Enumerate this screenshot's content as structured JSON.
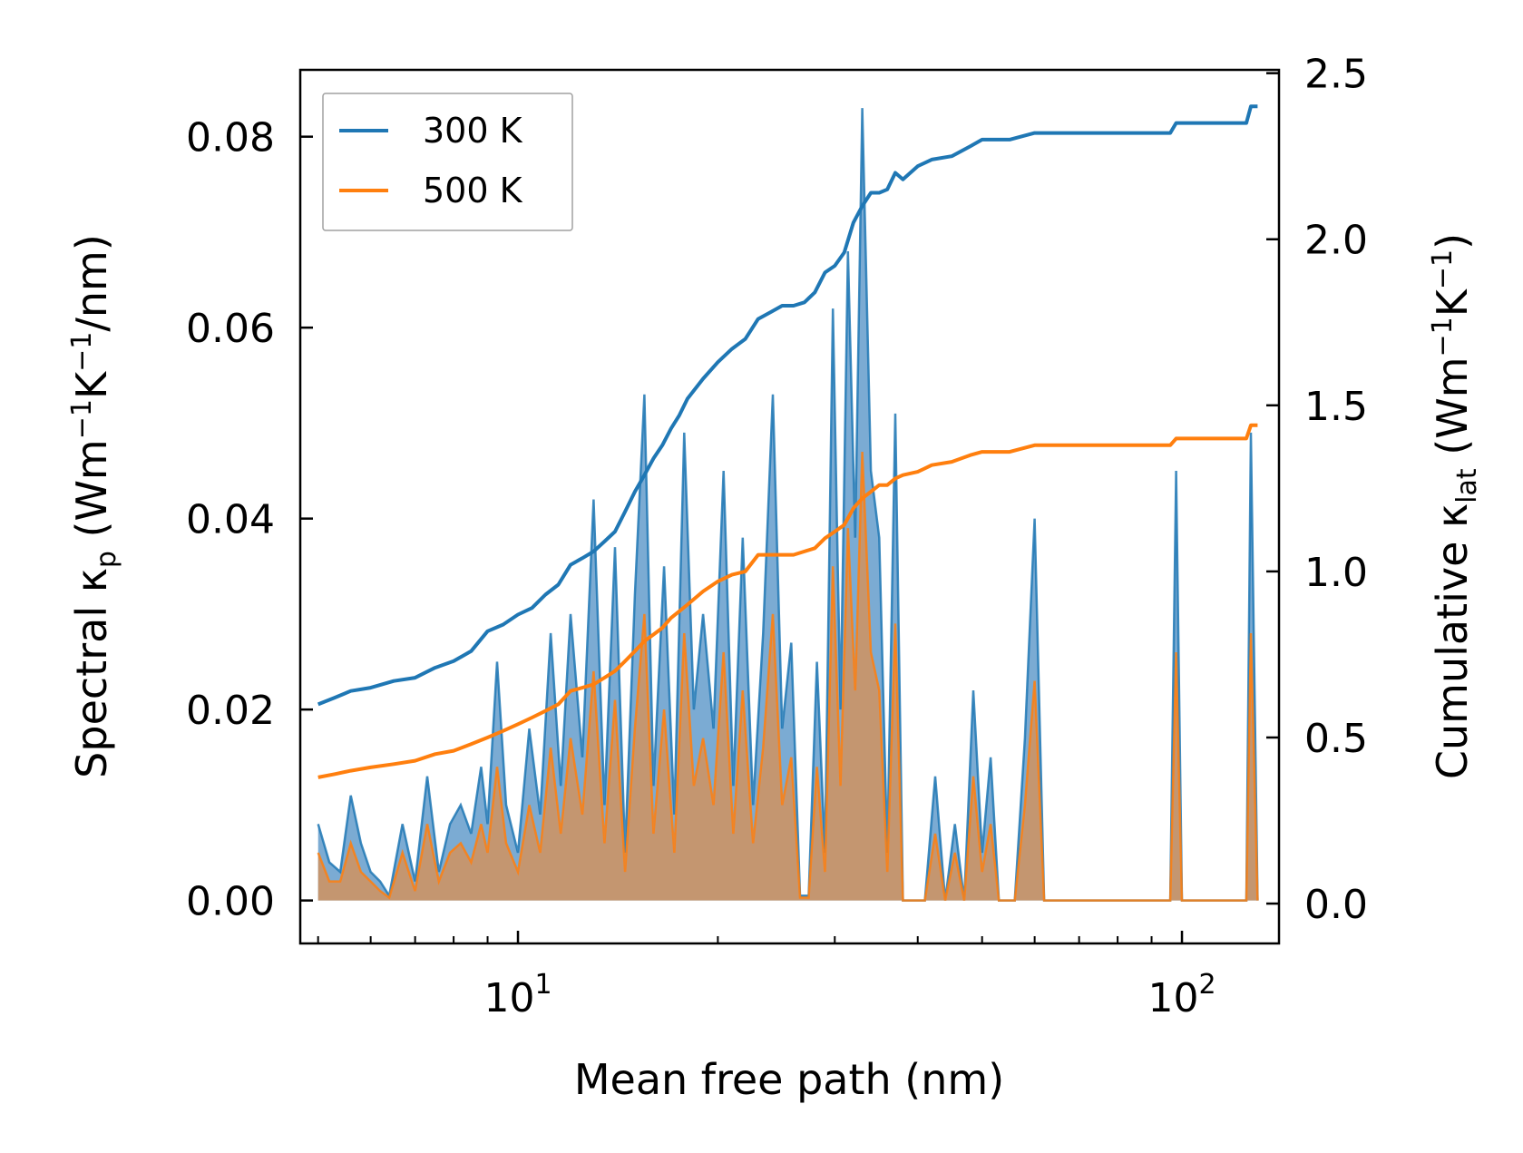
{
  "chart_data": {
    "type": "line",
    "xscale": "log",
    "xlabel": "Mean free path (nm)",
    "xlim": [
      4.7,
      140
    ],
    "x_major_ticks": [
      10,
      100
    ],
    "x_tick_labels": [
      "10",
      "10"
    ],
    "x_tick_exponents": [
      "1",
      "2"
    ],
    "ylabel_left": {
      "main": "Spectral κ",
      "sub": "p",
      "unit_open": " (Wm",
      "exp1": "−1",
      "mid": "K",
      "exp2": "−1",
      "unit_close": "/nm)"
    },
    "ylim_left": [
      -0.0045,
      0.087
    ],
    "y_left_ticks": [
      0.0,
      0.02,
      0.04,
      0.06,
      0.08
    ],
    "y_left_tick_labels": [
      "0.00",
      "0.02",
      "0.04",
      "0.06",
      "0.08"
    ],
    "ylabel_right": {
      "main": "Cumulative κ",
      "sub": "lat",
      "unit_open": " (Wm",
      "exp1": "−1",
      "mid": "K",
      "exp2": "−1",
      "unit_close": ")"
    },
    "ylim_right": [
      -0.12,
      2.51
    ],
    "y_right_ticks": [
      0.0,
      0.5,
      1.0,
      1.5,
      2.0,
      2.5
    ],
    "y_right_tick_labels": [
      "0.0",
      "0.5",
      "1.0",
      "1.5",
      "2.0",
      "2.5"
    ],
    "legend": {
      "position": "upper-left",
      "entries": [
        {
          "label": "300 K",
          "color": "#1f77b4"
        },
        {
          "label": "500 K",
          "color": "#ff7f0e"
        }
      ]
    },
    "series": [
      {
        "name": "300 K spectral",
        "axis": "left",
        "style": "filled-spikes",
        "color": "#1f77b4",
        "x": [
          5.0,
          5.2,
          5.4,
          5.6,
          5.8,
          6.0,
          6.2,
          6.4,
          6.7,
          7.0,
          7.3,
          7.6,
          7.9,
          8.2,
          8.5,
          8.8,
          9.0,
          9.3,
          9.6,
          10.0,
          10.4,
          10.8,
          11.2,
          11.6,
          12.0,
          12.5,
          13.0,
          13.5,
          14.0,
          14.5,
          15.0,
          15.5,
          16.0,
          16.6,
          17.2,
          17.8,
          18.4,
          19.0,
          19.7,
          20.4,
          21.1,
          21.8,
          22.6,
          23.4,
          24.2,
          25.0,
          25.8,
          26.6,
          27.4,
          28.2,
          29.0,
          29.8,
          30.6,
          31.4,
          32.2,
          33.0,
          34.0,
          35.0,
          36.0,
          37.0,
          38.0,
          39.5,
          41.0,
          42.5,
          44.0,
          45.5,
          47.0,
          48.5,
          50.0,
          51.5,
          53.0,
          56.0,
          58.0,
          60.0,
          62.0,
          70.0,
          80.0,
          90.0,
          96.0,
          98.0,
          100.0,
          110.0,
          120.0,
          125.0,
          127.0,
          130.0
        ],
        "values": [
          0.008,
          0.004,
          0.003,
          0.011,
          0.006,
          0.003,
          0.002,
          0.0005,
          0.008,
          0.002,
          0.013,
          0.003,
          0.008,
          0.01,
          0.007,
          0.014,
          0.008,
          0.025,
          0.01,
          0.005,
          0.018,
          0.009,
          0.028,
          0.012,
          0.03,
          0.015,
          0.042,
          0.01,
          0.037,
          0.005,
          0.032,
          0.053,
          0.012,
          0.035,
          0.009,
          0.049,
          0.02,
          0.03,
          0.018,
          0.045,
          0.012,
          0.038,
          0.01,
          0.028,
          0.053,
          0.018,
          0.027,
          0.0005,
          0.0005,
          0.025,
          0.005,
          0.062,
          0.02,
          0.068,
          0.038,
          0.083,
          0.045,
          0.038,
          0.005,
          0.051,
          0.0,
          0.0,
          0.0,
          0.013,
          0.0,
          0.008,
          0.0,
          0.022,
          0.005,
          0.015,
          0.0,
          0.0,
          0.017,
          0.04,
          0.0,
          0.0,
          0.0,
          0.0,
          0.0,
          0.045,
          0.0,
          0.0,
          0.0,
          0.0,
          0.049,
          0.0
        ]
      },
      {
        "name": "500 K spectral",
        "axis": "left",
        "style": "filled-spikes",
        "color": "#ff7f0e",
        "x": [
          5.0,
          5.2,
          5.4,
          5.6,
          5.8,
          6.0,
          6.2,
          6.4,
          6.7,
          7.0,
          7.3,
          7.6,
          7.9,
          8.2,
          8.5,
          8.8,
          9.0,
          9.3,
          9.6,
          10.0,
          10.4,
          10.8,
          11.2,
          11.6,
          12.0,
          12.5,
          13.0,
          13.5,
          14.0,
          14.5,
          15.0,
          15.5,
          16.0,
          16.6,
          17.2,
          17.8,
          18.4,
          19.0,
          19.7,
          20.4,
          21.1,
          21.8,
          22.6,
          23.4,
          24.2,
          25.0,
          25.8,
          26.6,
          27.4,
          28.2,
          29.0,
          29.8,
          30.6,
          31.4,
          32.2,
          33.0,
          34.0,
          35.0,
          36.0,
          37.0,
          38.0,
          39.5,
          41.0,
          42.5,
          44.0,
          45.5,
          47.0,
          48.5,
          50.0,
          51.5,
          53.0,
          56.0,
          58.0,
          60.0,
          62.0,
          70.0,
          80.0,
          90.0,
          96.0,
          98.0,
          100.0,
          110.0,
          120.0,
          125.0,
          127.0,
          130.0
        ],
        "values": [
          0.005,
          0.002,
          0.002,
          0.006,
          0.003,
          0.002,
          0.001,
          0.0003,
          0.005,
          0.001,
          0.008,
          0.002,
          0.005,
          0.006,
          0.004,
          0.008,
          0.005,
          0.014,
          0.006,
          0.003,
          0.01,
          0.005,
          0.016,
          0.007,
          0.017,
          0.009,
          0.024,
          0.006,
          0.021,
          0.003,
          0.018,
          0.03,
          0.007,
          0.02,
          0.005,
          0.028,
          0.012,
          0.017,
          0.01,
          0.026,
          0.007,
          0.022,
          0.006,
          0.016,
          0.03,
          0.01,
          0.015,
          0.0003,
          0.0003,
          0.014,
          0.003,
          0.035,
          0.012,
          0.039,
          0.022,
          0.047,
          0.026,
          0.022,
          0.003,
          0.029,
          0.0,
          0.0,
          0.0,
          0.007,
          0.0,
          0.005,
          0.0,
          0.013,
          0.003,
          0.008,
          0.0,
          0.0,
          0.01,
          0.023,
          0.0,
          0.0,
          0.0,
          0.0,
          0.0,
          0.026,
          0.0,
          0.0,
          0.0,
          0.0,
          0.028,
          0.0
        ]
      },
      {
        "name": "300 K cumulative",
        "axis": "right",
        "style": "line",
        "color": "#1f77b4",
        "x": [
          5.0,
          5.3,
          5.6,
          6.0,
          6.5,
          7.0,
          7.5,
          8.0,
          8.5,
          9.0,
          9.5,
          10.0,
          10.5,
          11.0,
          11.5,
          12.0,
          12.5,
          13.0,
          13.5,
          14.0,
          14.5,
          15.0,
          15.5,
          16.0,
          16.5,
          17.0,
          17.5,
          18.0,
          19.0,
          20.0,
          21.0,
          22.0,
          23.0,
          24.0,
          25.0,
          26.0,
          27.0,
          28.0,
          29.0,
          30.0,
          31.0,
          32.0,
          33.0,
          34.0,
          35.0,
          36.0,
          37.0,
          38.0,
          40.0,
          42.0,
          45.0,
          48.0,
          50.0,
          55.0,
          60.0,
          65.0,
          70.0,
          80.0,
          90.0,
          96.0,
          98.0,
          100.0,
          110.0,
          125.0,
          127.0,
          130.0
        ],
        "values": [
          0.6,
          0.62,
          0.64,
          0.65,
          0.67,
          0.68,
          0.71,
          0.73,
          0.76,
          0.82,
          0.84,
          0.87,
          0.89,
          0.93,
          0.96,
          1.02,
          1.04,
          1.06,
          1.09,
          1.12,
          1.18,
          1.24,
          1.29,
          1.34,
          1.38,
          1.43,
          1.47,
          1.52,
          1.58,
          1.63,
          1.67,
          1.7,
          1.76,
          1.78,
          1.8,
          1.8,
          1.81,
          1.84,
          1.9,
          1.92,
          1.96,
          2.05,
          2.1,
          2.14,
          2.14,
          2.15,
          2.2,
          2.18,
          2.22,
          2.24,
          2.25,
          2.28,
          2.3,
          2.3,
          2.32,
          2.32,
          2.32,
          2.32,
          2.32,
          2.32,
          2.35,
          2.35,
          2.35,
          2.35,
          2.4,
          2.4
        ]
      },
      {
        "name": "500 K cumulative",
        "axis": "right",
        "style": "line",
        "color": "#ff7f0e",
        "x": [
          5.0,
          5.3,
          5.6,
          6.0,
          6.5,
          7.0,
          7.5,
          8.0,
          8.5,
          9.0,
          9.5,
          10.0,
          10.5,
          11.0,
          11.5,
          12.0,
          12.5,
          13.0,
          13.5,
          14.0,
          14.5,
          15.0,
          15.5,
          16.0,
          16.5,
          17.0,
          17.5,
          18.0,
          19.0,
          20.0,
          21.0,
          22.0,
          23.0,
          24.0,
          25.0,
          26.0,
          27.0,
          28.0,
          29.0,
          30.0,
          31.0,
          32.0,
          33.0,
          34.0,
          35.0,
          36.0,
          37.0,
          38.0,
          40.0,
          42.0,
          45.0,
          48.0,
          50.0,
          55.0,
          60.0,
          65.0,
          70.0,
          80.0,
          90.0,
          96.0,
          98.0,
          100.0,
          110.0,
          125.0,
          127.0,
          130.0
        ],
        "values": [
          0.38,
          0.39,
          0.4,
          0.41,
          0.42,
          0.43,
          0.45,
          0.46,
          0.48,
          0.5,
          0.52,
          0.54,
          0.56,
          0.58,
          0.6,
          0.64,
          0.65,
          0.66,
          0.68,
          0.7,
          0.73,
          0.76,
          0.79,
          0.81,
          0.83,
          0.86,
          0.88,
          0.9,
          0.94,
          0.97,
          0.99,
          1.0,
          1.05,
          1.05,
          1.05,
          1.05,
          1.06,
          1.07,
          1.1,
          1.12,
          1.14,
          1.19,
          1.22,
          1.24,
          1.26,
          1.26,
          1.28,
          1.29,
          1.3,
          1.32,
          1.33,
          1.35,
          1.36,
          1.36,
          1.38,
          1.38,
          1.38,
          1.38,
          1.38,
          1.38,
          1.4,
          1.4,
          1.4,
          1.4,
          1.44,
          1.44
        ]
      }
    ]
  }
}
